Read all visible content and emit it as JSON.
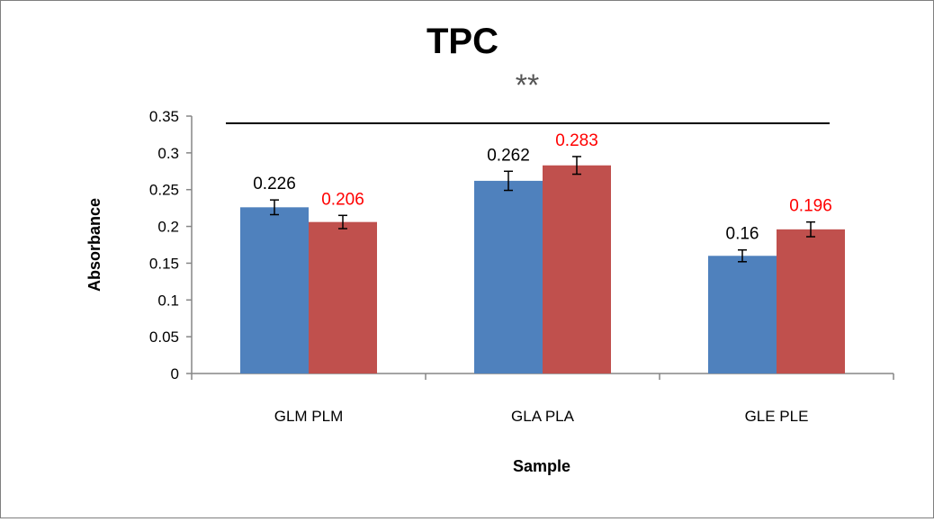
{
  "chart_data": {
    "type": "bar",
    "title": "TPC",
    "significance_label": "**",
    "xlabel": "Sample",
    "ylabel": "Absorbance",
    "categories": [
      "GLM PLM",
      "GLA PLA",
      "GLE PLE"
    ],
    "ylim": [
      0,
      0.35
    ],
    "yticks": [
      0,
      0.05,
      0.1,
      0.15,
      0.2,
      0.25,
      0.3,
      0.35
    ],
    "ytick_labels": [
      "0",
      "0.05",
      "0.1",
      "0.15",
      "0.2",
      "0.25",
      "0.3",
      "0.35"
    ],
    "grid": false,
    "legend": "none",
    "series": [
      {
        "color": "#4f81bd",
        "label_color": "#000000",
        "values": [
          0.226,
          0.262,
          0.16
        ],
        "value_labels": [
          "0.226",
          "0.262",
          "0.16"
        ],
        "errors": [
          0.01,
          0.013,
          0.008
        ]
      },
      {
        "color": "#c0504d",
        "label_color": "#ff0000",
        "values": [
          0.206,
          0.283,
          0.196
        ],
        "value_labels": [
          "0.206",
          "0.283",
          "0.196"
        ],
        "errors": [
          0.009,
          0.012,
          0.01
        ]
      }
    ]
  }
}
